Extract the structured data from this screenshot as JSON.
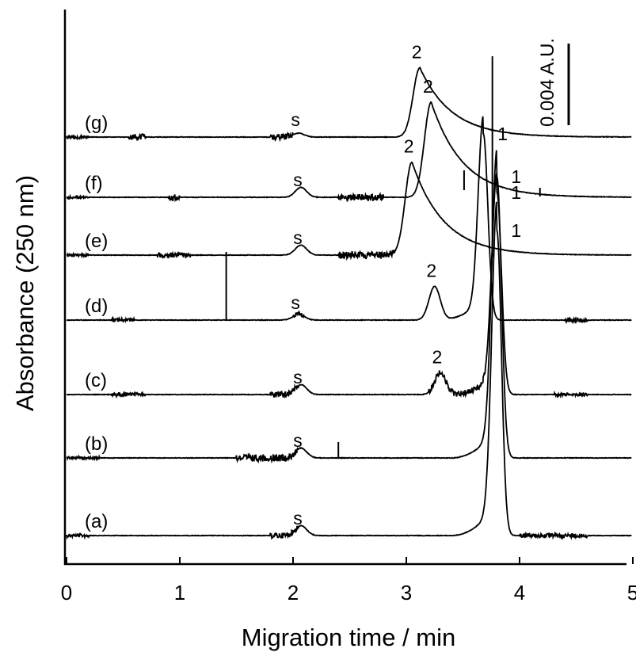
{
  "chart_data": {
    "type": "line",
    "xlabel": "Migration time / min",
    "ylabel": "Absorbance (250 nm)",
    "xlim": [
      0,
      5
    ],
    "x_ticks": [
      "0",
      "1",
      "2",
      "3",
      "4",
      "5"
    ],
    "scale_bar_label": "0.004 A.U.",
    "scale_bar_value": 0.004,
    "grid": false,
    "series": [
      {
        "name": "(a)",
        "peaks": [
          {
            "label": "s",
            "time": 2.07,
            "height": 0.0005
          },
          {
            "label": "1",
            "time": 3.8,
            "height": 0.0154
          }
        ]
      },
      {
        "name": "(b)",
        "peaks": [
          {
            "label": "s",
            "time": 2.07,
            "height": 0.0005
          },
          {
            "label": "1",
            "time": 3.8,
            "height": 0.0142
          }
        ]
      },
      {
        "name": "(c)",
        "peaks": [
          {
            "label": "s",
            "time": 2.07,
            "height": 0.0005
          },
          {
            "label": "2",
            "time": 3.3,
            "height": 0.0011
          },
          {
            "label": "1",
            "time": 3.8,
            "height": 0.0102
          }
        ]
      },
      {
        "name": "(d)",
        "peaks": [
          {
            "label": "s",
            "time": 2.05,
            "height": 0.0003
          },
          {
            "label": "2",
            "time": 3.25,
            "height": 0.0017
          },
          {
            "label": "1",
            "time": 3.68,
            "height": 0.0094
          }
        ]
      },
      {
        "name": "(e)",
        "peaks": [
          {
            "label": "s",
            "time": 2.07,
            "height": 0.0005
          },
          {
            "label": "2",
            "time": 3.05,
            "height": 0.0047
          }
        ]
      },
      {
        "name": "(f)",
        "peaks": [
          {
            "label": "s",
            "time": 2.07,
            "height": 0.0005
          },
          {
            "label": "2",
            "time": 3.22,
            "height": 0.0048
          }
        ]
      },
      {
        "name": "(g)",
        "peaks": [
          {
            "label": "s",
            "time": 2.05,
            "height": 0.0002
          },
          {
            "label": "2",
            "time": 3.12,
            "height": 0.0035
          }
        ]
      }
    ]
  }
}
